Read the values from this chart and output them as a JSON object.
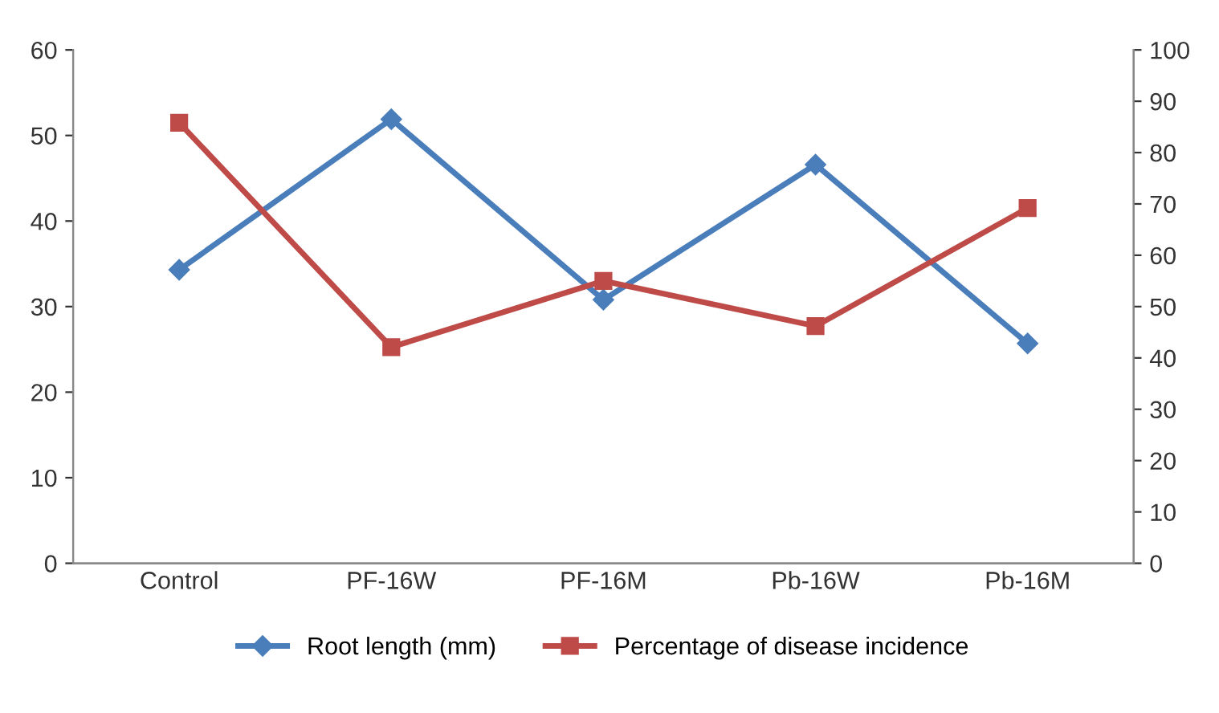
{
  "chart_data": {
    "type": "line",
    "categories": [
      "Control",
      "PF-16W",
      "PF-16M",
      "Pb-16W",
      "Pb-16M"
    ],
    "series": [
      {
        "name": "Root length (mm)",
        "color": "#4a7ebb",
        "marker": "diamond",
        "values": [
          34.3,
          51.9,
          30.8,
          46.6,
          25.7
        ]
      },
      {
        "name": "Percentage of disease incidence",
        "color": "#be4b48",
        "marker": "square",
        "axis": "y2",
        "values": [
          85.8,
          42.1,
          55.0,
          46.2,
          69.2
        ]
      }
    ],
    "ylim": [
      0,
      60
    ],
    "yticks": [
      0,
      10,
      20,
      30,
      40,
      50,
      60
    ],
    "y2lim": [
      0,
      100
    ],
    "y2ticks": [
      0,
      10,
      20,
      30,
      40,
      50,
      60,
      70,
      80,
      90,
      100
    ],
    "grid": false,
    "legend": "bottom",
    "line_style": "solid"
  }
}
